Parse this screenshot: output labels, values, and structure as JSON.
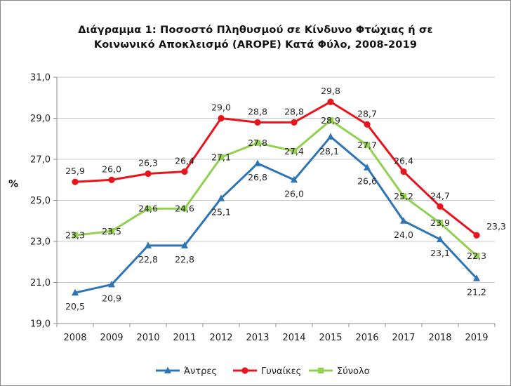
{
  "chart_data": {
    "type": "line",
    "title_lines": [
      "Διάγραμμα  1: Ποσοστό Πληθυσμού  σε Κίνδυνο Φτώχιας ή σε",
      "Κοινωνικό Αποκλεισμό  (AROPE)  Κατά Φύλο, 2008-2019"
    ],
    "ylabel": "%",
    "xlabel": "",
    "categories": [
      "2008",
      "2009",
      "2010",
      "2011",
      "2012",
      "2013",
      "2014",
      "2015",
      "2016",
      "2017",
      "2018",
      "2019"
    ],
    "ylim": [
      19.0,
      31.0
    ],
    "yticks": [
      19.0,
      21.0,
      23.0,
      25.0,
      27.0,
      29.0,
      31.0
    ],
    "ytick_labels": [
      "19,0",
      "21,0",
      "23,0",
      "25,0",
      "27,0",
      "29,0",
      "31,0"
    ],
    "grid": true,
    "legend_position": "bottom",
    "series": [
      {
        "name": "Άντρες",
        "color": "#2E75B6",
        "marker": "triangle",
        "values": [
          20.5,
          20.9,
          22.8,
          22.8,
          25.1,
          26.8,
          26.0,
          28.1,
          26.6,
          24.0,
          23.1,
          21.2
        ],
        "labels": [
          "20,5",
          "20,9",
          "22,8",
          "22,8",
          "25,1",
          "26,8",
          "26,0",
          "28,1",
          "26,6",
          "24,0",
          "23,1",
          "21,2"
        ]
      },
      {
        "name": "Γυναίκες",
        "color": "#E8141B",
        "marker": "circle",
        "values": [
          25.9,
          26.0,
          26.3,
          26.4,
          29.0,
          28.8,
          28.8,
          29.8,
          28.7,
          26.4,
          24.7,
          23.3
        ],
        "labels": [
          "25,9",
          "26,0",
          "26,3",
          "26,4",
          "29,0",
          "28,8",
          "28,8",
          "29,8",
          "28,7",
          "26,4",
          "24,7",
          "23,3"
        ]
      },
      {
        "name": "Σύνολο",
        "color": "#92D050",
        "marker": "square",
        "values": [
          23.3,
          23.5,
          24.6,
          24.6,
          27.1,
          27.8,
          27.4,
          28.9,
          27.7,
          25.2,
          23.9,
          22.3
        ],
        "labels": [
          "23,3",
          "23,5",
          "24,6",
          "24,6",
          "27,1",
          "27,8",
          "27,4",
          "28,9",
          "27,7",
          "25,2",
          "23,9",
          "22,3"
        ]
      }
    ]
  }
}
